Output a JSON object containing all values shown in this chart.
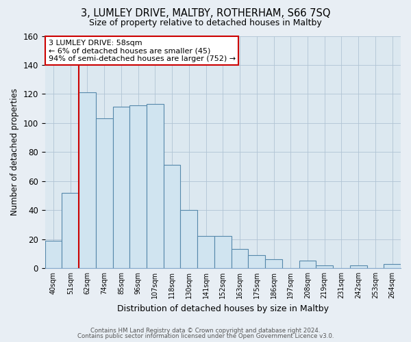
{
  "title": "3, LUMLEY DRIVE, MALTBY, ROTHERHAM, S66 7SQ",
  "subtitle": "Size of property relative to detached houses in Maltby",
  "xlabel": "Distribution of detached houses by size in Maltby",
  "ylabel": "Number of detached properties",
  "bar_labels": [
    "40sqm",
    "51sqm",
    "62sqm",
    "74sqm",
    "85sqm",
    "96sqm",
    "107sqm",
    "118sqm",
    "130sqm",
    "141sqm",
    "152sqm",
    "163sqm",
    "175sqm",
    "186sqm",
    "197sqm",
    "208sqm",
    "219sqm",
    "231sqm",
    "242sqm",
    "253sqm",
    "264sqm"
  ],
  "bar_values": [
    19,
    52,
    121,
    103,
    111,
    112,
    113,
    71,
    40,
    22,
    22,
    13,
    9,
    6,
    0,
    5,
    2,
    0,
    2,
    0,
    3
  ],
  "bar_color": "#d0e4f0",
  "bar_edge_color": "#5588aa",
  "marker_line_color": "#cc0000",
  "annotation_line1": "3 LUMLEY DRIVE: 58sqm",
  "annotation_line2": "← 6% of detached houses are smaller (45)",
  "annotation_line3": "94% of semi-detached houses are larger (752) →",
  "ylim": [
    0,
    160
  ],
  "yticks": [
    0,
    20,
    40,
    60,
    80,
    100,
    120,
    140,
    160
  ],
  "footer1": "Contains HM Land Registry data © Crown copyright and database right 2024.",
  "footer2": "Contains public sector information licensed under the Open Government Licence v3.0.",
  "bg_color": "#e8eef4",
  "plot_bg_color": "#dce8f0"
}
